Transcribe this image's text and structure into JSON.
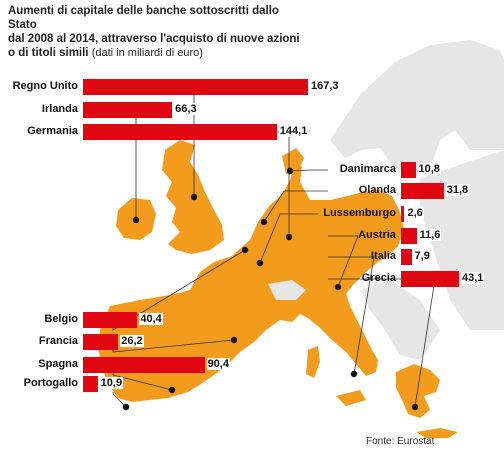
{
  "title": {
    "line1": "Aumenti di capitale delle banche sottoscritti dallo Stato",
    "line2": "dal 2008 al 2014, attraverso l'acquisto di nuove azioni",
    "line3_bold": "o di titoli simili",
    "line3_normal": "(dati in miliardi di euro)"
  },
  "source": "Fonte: Eurostat",
  "colors": {
    "bar": "#e10712",
    "map": "#f29b1c",
    "sea": "#ffffff",
    "dot": "#111111",
    "leader": "#333333"
  },
  "chart_data": {
    "type": "bar",
    "orientation": "horizontal",
    "title": "Aumenti di capitale delle banche sottoscritti dallo Stato dal 2008 al 2014, attraverso l'acquisto di nuove azioni o di titoli simili (dati in miliardi di euro)",
    "unit": "miliardi di euro",
    "series": [
      {
        "values_by_country": [
          {
            "country": "Regno Unito",
            "label": "167,3",
            "value": 167.3
          },
          {
            "country": "Irlanda",
            "label": "66,3",
            "value": 66.3
          },
          {
            "country": "Germania",
            "label": "144,1",
            "value": 144.1
          },
          {
            "country": "Danimarca",
            "label": "10,8",
            "value": 10.8
          },
          {
            "country": "Olanda",
            "label": "31,8",
            "value": 31.8
          },
          {
            "country": "Lussemburgo",
            "label": "2,6",
            "value": 2.6
          },
          {
            "country": "Austria",
            "label": "11,6",
            "value": 11.6
          },
          {
            "country": "Italia",
            "label": "7,9",
            "value": 7.9
          },
          {
            "country": "Grecia",
            "label": "43,1",
            "value": 43.1
          },
          {
            "country": "Belgio",
            "label": "40,4",
            "value": 40.4
          },
          {
            "country": "Francia",
            "label": "26,2",
            "value": 26.2
          },
          {
            "country": "Spagna",
            "label": "90,4",
            "value": 90.4
          },
          {
            "country": "Portogallo",
            "label": "10,9",
            "value": 10.9
          }
        ]
      }
    ],
    "xlim": [
      0,
      167.3
    ],
    "grid": false,
    "legend": "none",
    "annotation": "Fonte: Eurostat"
  }
}
